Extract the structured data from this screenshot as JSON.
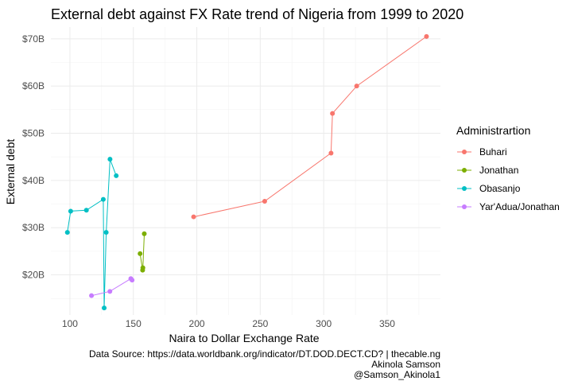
{
  "chart_data": {
    "type": "line",
    "title": "External debt against FX Rate trend of Nigeria from 1999 to 2020",
    "xlabel": "Naira to Dollar Exchange Rate",
    "ylabel": "External debt",
    "xlim": [
      85,
      392
    ],
    "ylim": [
      11.5,
      72.5
    ],
    "x_ticks": [
      100,
      150,
      200,
      250,
      300,
      350
    ],
    "x_tick_labels": [
      "100",
      "150",
      "200",
      "250",
      "300",
      "350"
    ],
    "y_ticks": [
      20,
      30,
      40,
      50,
      60,
      70
    ],
    "y_tick_labels": [
      "$20B",
      "$30B",
      "$40B",
      "$50B",
      "$60B",
      "$70B"
    ],
    "grid": true,
    "legend": {
      "title": "Administrartion",
      "position": "right"
    },
    "series": [
      {
        "name": "Buhari",
        "color": "#F8766D",
        "points": [
          [
            197.5,
            32.3
          ],
          [
            253.5,
            35.6
          ],
          [
            305.8,
            45.8
          ],
          [
            306.9,
            54.2
          ],
          [
            326.0,
            60.0
          ],
          [
            381.0,
            70.5
          ]
        ]
      },
      {
        "name": "Jonathan",
        "color": "#7CAE00",
        "points": [
          [
            155.3,
            24.5
          ],
          [
            157.3,
            21.0
          ],
          [
            157.5,
            21.5
          ],
          [
            158.6,
            28.7
          ]
        ]
      },
      {
        "name": "Obasanjo",
        "color": "#00BFC4",
        "points": [
          [
            98.0,
            29.0
          ],
          [
            100.6,
            33.5
          ],
          [
            113.0,
            33.7
          ],
          [
            126.3,
            36.0
          ],
          [
            127.0,
            13.0
          ],
          [
            128.6,
            29.0
          ],
          [
            131.6,
            44.5
          ],
          [
            136.5,
            41.0
          ]
        ]
      },
      {
        "name": "Yar'Adua/Jonathan",
        "color": "#C77CFF",
        "points": [
          [
            117.0,
            15.6
          ],
          [
            131.5,
            16.5
          ],
          [
            148.0,
            19.2
          ],
          [
            149.0,
            18.9
          ]
        ]
      }
    ]
  },
  "caption": {
    "line1": "Data Source: https://data.worldbank.org/indicator/DT.DOD.DECT.CD? | thecable.ng",
    "line2": "Akinola Samson",
    "line3": "@Samson_Akinola1"
  }
}
